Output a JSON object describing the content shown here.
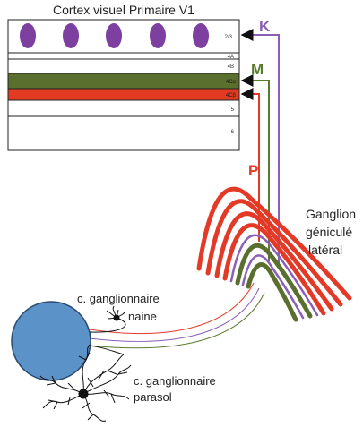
{
  "title": "Cortex visuel Primaire V1",
  "layers": [
    {
      "label": "2/3",
      "fill": "#ffffff"
    },
    {
      "label": "4A",
      "fill": "#ffffff"
    },
    {
      "label": "4B",
      "fill": "#ffffff"
    },
    {
      "label": "4Cα",
      "fill": "#5a6e2e"
    },
    {
      "label": "4Cβ",
      "fill": "#e23b22"
    },
    {
      "label": "5",
      "fill": "#ffffff"
    },
    {
      "label": "6",
      "fill": "#ffffff"
    }
  ],
  "pathways": {
    "k": {
      "label": "K",
      "color": "#8b5fb5"
    },
    "m": {
      "label": "M",
      "color": "#5a7a2e"
    },
    "p": {
      "label": "P",
      "color": "#e33a28"
    }
  },
  "lgn_label": {
    "line1": "Ganglion",
    "line2": "géniculé",
    "line3": "latéral"
  },
  "midget_label": {
    "line1": "c. ganglionnaire",
    "line2": "naine"
  },
  "parasol_label": {
    "line1": "c. ganglionnaire",
    "line2": "parasol"
  },
  "colors": {
    "blob": "#7d3fa0",
    "eye": "#5b92c8",
    "eye_stroke": "#2b4a6e",
    "layer_text": "#333333"
  }
}
